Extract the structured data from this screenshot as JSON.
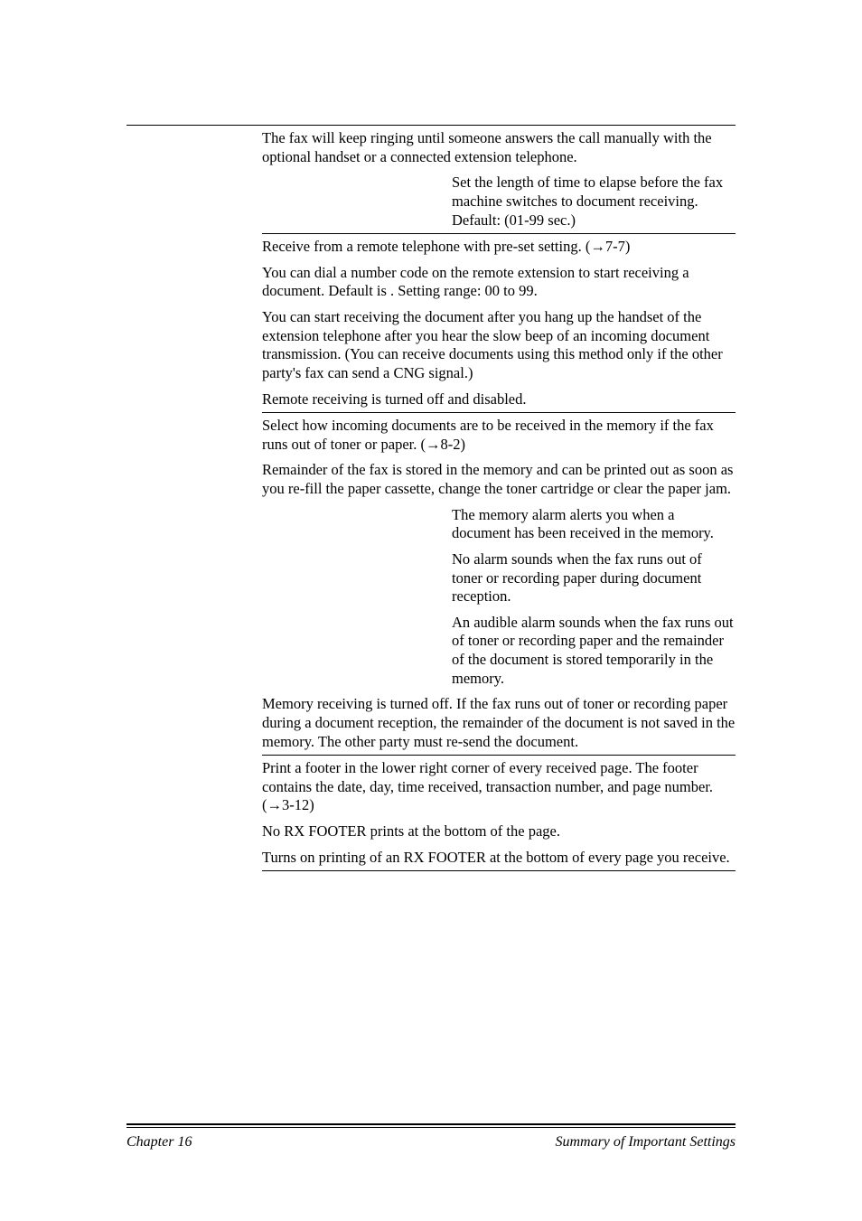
{
  "sections": {
    "manual_answer": {
      "intro": "The fax will keep ringing until someone answers the call manually with the optional handset or a connected extension telephone.",
      "sub": {
        "label": "",
        "text": "Set the length of time to elapse before the fax machine switches to document receiving. Default: (01-99 sec.)"
      }
    },
    "remote_rx": {
      "line1": "Receive from a remote telephone with pre-set setting. (→7-7)",
      "line2": "You can dial a number code on the remote extension to start receiving a document. Default is      . Setting range: 00 to 99.",
      "line3": "You can start receiving the document after you hang up the handset of the extension telephone after you hear the slow beep of an incoming document transmission. (You can receive documents using this method only if the other party's fax can send a CNG signal.)",
      "line4": "Remote receiving is turned off and disabled."
    },
    "memory_rx": {
      "intro": "Select how incoming documents are to be received in the memory if the fax runs out of toner or paper. (→8-2)",
      "remainder": "Remainder of the fax is stored in the memory and can be printed out as soon as you re-fill the paper cassette, change the toner cartridge or clear the paper jam.",
      "sub1": "The memory alarm alerts you when a document has been received in the memory.",
      "sub2": "No alarm sounds when the fax runs out of toner or recording paper during document reception.",
      "sub3": "An audible alarm sounds when the fax runs out of toner or recording paper and the remainder of the document is stored temporarily in the memory.",
      "off": "Memory receiving is turned off. If the fax runs out of toner or recording paper during a document reception, the remainder of the document is not saved in the memory. The other party must re-send the document."
    },
    "rx_footer": {
      "intro": "Print a footer in the lower right corner of every received page. The footer contains the date, day, time received, transaction number, and page number. (→3-12)",
      "off": "No RX FOOTER prints at the bottom of the page.",
      "on": "Turns on printing of an RX FOOTER at the bottom of every page you receive."
    }
  },
  "footer": {
    "left": "Chapter 16",
    "right": "Summary of Important Settings"
  }
}
